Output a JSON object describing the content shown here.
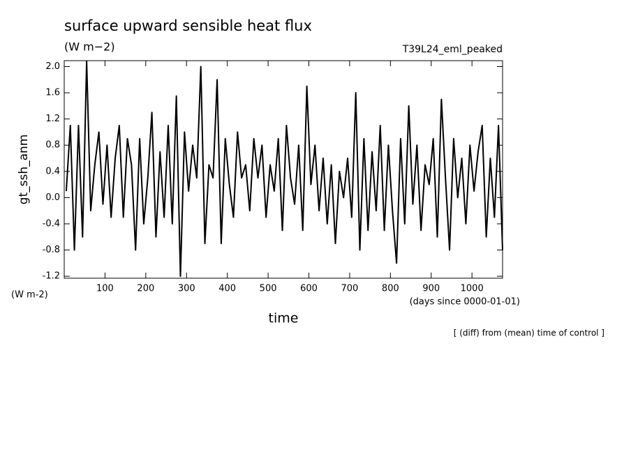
{
  "chart_data": {
    "type": "line",
    "title": "surface upward sensible heat flux",
    "subtitle": "(W m−2)",
    "annotation_right": "T39L24_eml_peaked",
    "ylabel": "gt_ssh_anm",
    "yunit": "(W m-2)",
    "xunit": "(days since 0000-01-01)",
    "xlabel": "time",
    "footnote": "[ (diff) from (mean) time of control ]",
    "color": "#000000",
    "xlim": [
      0,
      1075
    ],
    "ylim": [
      -1.23,
      2.09
    ],
    "xticks": [
      100,
      200,
      300,
      400,
      500,
      600,
      700,
      800,
      900,
      1000
    ],
    "yticks": [
      -1.2,
      -0.8,
      -0.4,
      {
        "value": 0,
        "label": "0.0"
      },
      0.4,
      0.8,
      1.2,
      1.6,
      {
        "value": 2,
        "label": "2.0"
      }
    ],
    "x": [
      5,
      15,
      25,
      35,
      45,
      55,
      65,
      75,
      85,
      95,
      105,
      115,
      125,
      135,
      145,
      155,
      165,
      175,
      185,
      195,
      205,
      215,
      225,
      235,
      245,
      255,
      265,
      275,
      285,
      295,
      305,
      315,
      325,
      335,
      345,
      355,
      365,
      375,
      385,
      395,
      405,
      415,
      425,
      435,
      445,
      455,
      465,
      475,
      485,
      495,
      505,
      515,
      525,
      535,
      545,
      555,
      565,
      575,
      585,
      595,
      605,
      615,
      625,
      635,
      645,
      655,
      665,
      675,
      685,
      695,
      705,
      715,
      725,
      735,
      745,
      755,
      765,
      775,
      785,
      795,
      805,
      815,
      825,
      835,
      845,
      855,
      865,
      875,
      885,
      895,
      905,
      915,
      925,
      935,
      945,
      955,
      965,
      975,
      985,
      995,
      1005,
      1015,
      1025,
      1035,
      1045,
      1055,
      1065,
      1075
    ],
    "values": [
      0.1,
      1.1,
      -0.8,
      1.1,
      -0.6,
      2.08,
      -0.2,
      0.5,
      1.0,
      -0.1,
      0.8,
      -0.3,
      0.6,
      1.1,
      -0.3,
      0.9,
      0.5,
      -0.8,
      0.9,
      -0.4,
      0.3,
      1.3,
      -0.6,
      0.7,
      -0.3,
      1.1,
      -0.4,
      1.55,
      -1.2,
      1.0,
      0.1,
      0.8,
      0.3,
      2.0,
      -0.7,
      0.5,
      0.3,
      1.8,
      -0.7,
      0.9,
      0.2,
      -0.3,
      1.0,
      0.3,
      0.5,
      -0.2,
      0.9,
      0.3,
      0.8,
      -0.3,
      0.5,
      0.1,
      0.9,
      -0.5,
      1.1,
      0.3,
      -0.1,
      0.8,
      -0.5,
      1.7,
      0.2,
      0.8,
      -0.2,
      0.6,
      -0.4,
      0.5,
      -0.7,
      0.4,
      0.0,
      0.6,
      -0.3,
      1.6,
      -0.8,
      0.9,
      -0.5,
      0.7,
      -0.2,
      1.1,
      -0.5,
      0.8,
      -0.2,
      -1.0,
      0.9,
      -0.4,
      1.4,
      -0.1,
      0.8,
      -0.5,
      0.5,
      0.2,
      0.9,
      -0.6,
      1.5,
      0.3,
      -0.8,
      0.9,
      0.0,
      0.6,
      -0.4,
      0.8,
      0.1,
      0.7,
      1.1,
      -0.6,
      0.6,
      -0.3,
      1.1,
      -0.8
    ]
  }
}
